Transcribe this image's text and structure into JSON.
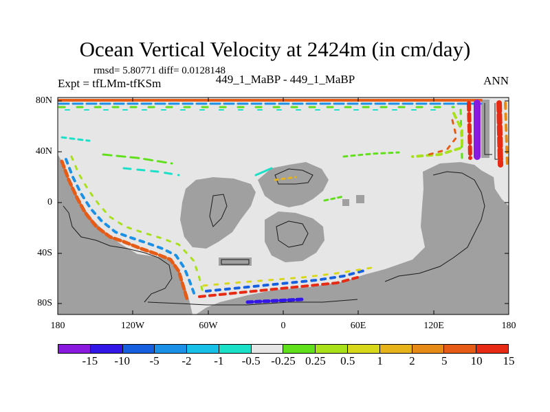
{
  "title": "Ocean Vertical Velocity at 2424m (in cm/day)",
  "stats": "rmsd= 5.80771 diff= 0.0128148",
  "expt": "Expt = tfLMm-tfKSm",
  "center_label": "449_1_MaBP - 449_1_MaBP",
  "season": "ANN",
  "lat_labels": [
    "80N",
    "40N",
    "0",
    "40S",
    "80S"
  ],
  "lon_labels": [
    "180",
    "120W",
    "60W",
    "0",
    "60E",
    "120E",
    "180"
  ],
  "colorbar": {
    "colors": [
      "#8a19e0",
      "#3216e8",
      "#1660e0",
      "#1a90e6",
      "#16c0e6",
      "#1ae0c8",
      "#e6e6e6",
      "#60e01a",
      "#a8e01a",
      "#d8d81a",
      "#e6b41a",
      "#e68c16",
      "#e65c16",
      "#e62a14"
    ],
    "labels": [
      "-15",
      "-10",
      "-5",
      "-2",
      "-1",
      "-0.5",
      "-0.25",
      "0.25",
      "0.5",
      "1",
      "2",
      "5",
      "10",
      "15"
    ]
  },
  "map_colors": {
    "ocean": "#e6e6e6",
    "land": "#a0a0a0",
    "coast": "#1a1a1a"
  }
}
